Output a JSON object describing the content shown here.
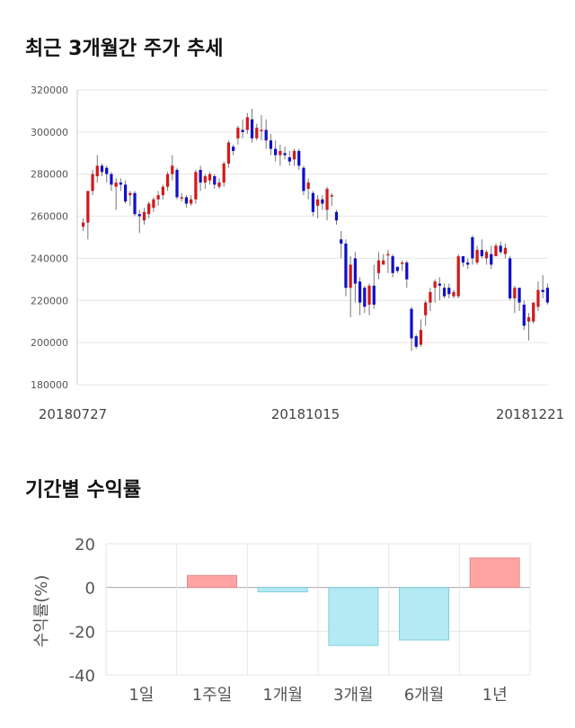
{
  "title_price": "최근 3개월간 주가 추세",
  "title_returns": "기간별 수익률",
  "chart_data": [
    {
      "type": "candlestick",
      "ylim": [
        180000,
        320000
      ],
      "y_ticks": [
        "320000",
        "300000",
        "280000",
        "260000",
        "240000",
        "220000",
        "200000",
        "180000"
      ],
      "x_ticks": [
        "20180727",
        "20181015",
        "20181221"
      ],
      "colors": {
        "up": "#d11a1a",
        "down": "#1010c8",
        "wick": "#777777",
        "grid": "#e6e6e6"
      },
      "candles": [
        [
          255000,
          257000,
          253000,
          259000
        ],
        [
          257000,
          272000,
          249000,
          272000
        ],
        [
          272000,
          280000,
          270000,
          282000
        ],
        [
          279000,
          284000,
          276000,
          289000
        ],
        [
          284000,
          281000,
          279000,
          285000
        ],
        [
          283000,
          280000,
          276000,
          284000
        ],
        [
          280000,
          275000,
          272000,
          281000
        ],
        [
          274000,
          276000,
          263000,
          278000
        ],
        [
          276000,
          275000,
          272000,
          278000
        ],
        [
          275000,
          267000,
          266000,
          277000
        ],
        [
          270000,
          271000,
          265000,
          272000
        ],
        [
          271000,
          261000,
          260000,
          272000
        ],
        [
          261000,
          260000,
          252000,
          263000
        ],
        [
          258000,
          262000,
          256000,
          264000
        ],
        [
          261000,
          266000,
          259000,
          267000
        ],
        [
          264000,
          268000,
          262000,
          269000
        ],
        [
          268000,
          270000,
          265000,
          272000
        ],
        [
          270000,
          274000,
          268000,
          275000
        ],
        [
          274000,
          280000,
          272000,
          281000
        ],
        [
          280000,
          284000,
          277000,
          289000
        ],
        [
          282000,
          269000,
          268000,
          283000
        ],
        [
          269000,
          269000,
          267000,
          271000
        ],
        [
          269000,
          266000,
          264000,
          270000
        ],
        [
          266000,
          268000,
          265000,
          270000
        ],
        [
          268000,
          281000,
          266000,
          282000
        ],
        [
          282000,
          276000,
          272000,
          284000
        ],
        [
          276000,
          279000,
          273000,
          280000
        ],
        [
          277000,
          280000,
          275000,
          281000
        ],
        [
          279000,
          275000,
          273000,
          280000
        ],
        [
          274000,
          276000,
          273000,
          278000
        ],
        [
          276000,
          285000,
          274000,
          286000
        ],
        [
          285000,
          295000,
          283000,
          296000
        ],
        [
          293000,
          291000,
          289000,
          294000
        ],
        [
          297000,
          302000,
          294000,
          303000
        ],
        [
          301000,
          300000,
          297000,
          306000
        ],
        [
          301000,
          307000,
          299000,
          309000
        ],
        [
          306000,
          297000,
          295000,
          311000
        ],
        [
          297000,
          302000,
          296000,
          304000
        ],
        [
          301000,
          301000,
          296000,
          308000
        ],
        [
          301000,
          296000,
          292000,
          306000
        ],
        [
          296000,
          292000,
          289000,
          299000
        ],
        [
          292000,
          289000,
          286000,
          296000
        ],
        [
          289000,
          291000,
          284000,
          294000
        ],
        [
          290000,
          289000,
          287000,
          293000
        ],
        [
          288000,
          286000,
          284000,
          291000
        ],
        [
          287000,
          291000,
          284000,
          292000
        ],
        [
          291000,
          284000,
          282000,
          292000
        ],
        [
          283000,
          272000,
          270000,
          284000
        ],
        [
          273000,
          276000,
          268000,
          278000
        ],
        [
          271000,
          262000,
          260000,
          272000
        ],
        [
          265000,
          268000,
          259000,
          270000
        ],
        [
          268000,
          266000,
          263000,
          270000
        ],
        [
          263000,
          273000,
          258000,
          274000
        ],
        [
          270000,
          270000,
          265000,
          271000
        ],
        [
          262000,
          258000,
          256000,
          263000
        ],
        [
          249000,
          247000,
          240000,
          253000
        ],
        [
          247000,
          226000,
          222000,
          249000
        ],
        [
          226000,
          237000,
          212000,
          241000
        ],
        [
          240000,
          228000,
          219000,
          243000
        ],
        [
          229000,
          219000,
          213000,
          231000
        ],
        [
          226000,
          217000,
          214000,
          227000
        ],
        [
          218000,
          227000,
          213000,
          228000
        ],
        [
          227000,
          218000,
          216000,
          237000
        ],
        [
          233000,
          239000,
          230000,
          243000
        ],
        [
          237000,
          239000,
          237000,
          242000
        ],
        [
          242000,
          242000,
          233000,
          244000
        ],
        [
          241000,
          233000,
          231000,
          242000
        ],
        [
          236000,
          234000,
          233000,
          236000
        ],
        [
          238000,
          238000,
          234000,
          239000
        ],
        [
          238000,
          230000,
          226000,
          239000
        ],
        [
          216000,
          202000,
          196000,
          217000
        ],
        [
          203000,
          198000,
          197000,
          204000
        ],
        [
          199000,
          206000,
          198000,
          211000
        ],
        [
          213000,
          219000,
          208000,
          220000
        ],
        [
          219000,
          224000,
          215000,
          226000
        ],
        [
          226000,
          229000,
          219000,
          230000
        ],
        [
          228000,
          227000,
          220000,
          231000
        ],
        [
          226000,
          222000,
          221000,
          228000
        ],
        [
          226000,
          223000,
          221000,
          228000
        ],
        [
          222000,
          224000,
          221000,
          225000
        ],
        [
          222000,
          241000,
          221000,
          242000
        ],
        [
          241000,
          238000,
          236000,
          241000
        ],
        [
          238000,
          237000,
          235000,
          240000
        ],
        [
          250000,
          240000,
          237000,
          251000
        ],
        [
          238000,
          244000,
          237000,
          246000
        ],
        [
          244000,
          241000,
          240000,
          249000
        ],
        [
          240000,
          243000,
          237000,
          244000
        ],
        [
          242000,
          237000,
          235000,
          246000
        ],
        [
          241000,
          246000,
          241000,
          247000
        ],
        [
          246000,
          243000,
          242000,
          248000
        ],
        [
          242000,
          245000,
          240000,
          247000
        ],
        [
          240000,
          221000,
          220000,
          241000
        ],
        [
          221000,
          226000,
          214000,
          227000
        ],
        [
          226000,
          219000,
          215000,
          226000
        ],
        [
          218000,
          208000,
          206000,
          220000
        ],
        [
          210000,
          212000,
          201000,
          214000
        ],
        [
          210000,
          219000,
          209000,
          219000
        ],
        [
          217000,
          225000,
          215000,
          229000
        ],
        [
          225000,
          224000,
          221000,
          232000
        ],
        [
          226000,
          219000,
          218000,
          228000
        ]
      ]
    },
    {
      "type": "bar",
      "categories": [
        "1일",
        "1주일",
        "1개월",
        "3개월",
        "6개월",
        "1년"
      ],
      "values": [
        0,
        5.5,
        -2,
        -26.5,
        -24,
        13.5
      ],
      "ylim": [
        -40,
        20
      ],
      "y_ticks": [
        "20",
        "0",
        "-20",
        "-40"
      ],
      "ylabel": "수익률(%)",
      "colors": {
        "positive": "#ffa3a3",
        "negative": "#b4eaf4",
        "zero_line": "#aaaaaa",
        "grid": "#e6e6e6"
      }
    }
  ]
}
